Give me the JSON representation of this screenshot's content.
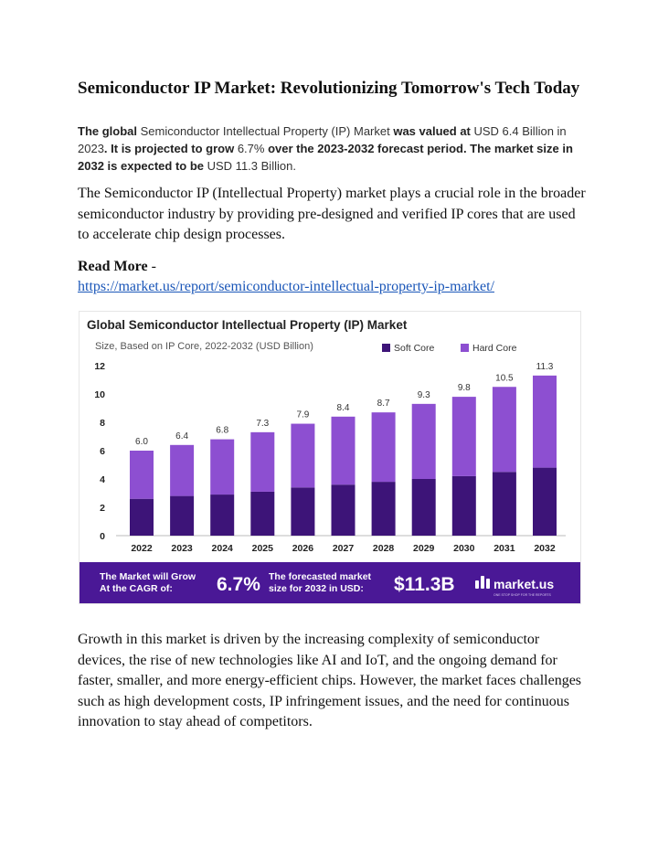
{
  "article": {
    "title": "Semiconductor IP Market: Revolutionizing Tomorrow's Tech Today",
    "summary": {
      "s1": "The global",
      "s2": " Semiconductor Intellectual Property (IP) Market ",
      "s3": "was valued at",
      "s4": " USD 6.4 Billion in 2023",
      "s5": ". It is projected to grow",
      "s6": " 6.7% ",
      "s7": "over the 2023-2032 forecast period. The market size in 2032 is expected to be",
      "s8": " USD 11.3 Billion."
    },
    "intro": "The Semiconductor IP (Intellectual Property) market plays a crucial role in the broader semiconductor industry by providing pre-designed and verified IP cores that are used to accelerate chip design processes.",
    "read_more_label": "Read More",
    "read_more_sep": " -",
    "read_more_link": "https://market.us/report/semiconductor-intellectual-property-ip-market/",
    "growth": "Growth in this market is driven by the increasing complexity of semiconductor devices, the rise of new technologies like AI and IoT, and the ongoing demand for faster, smaller, and more energy-efficient chips. However, the market faces challenges such as high development costs, IP infringement issues, and the need for continuous innovation to stay ahead of competitors."
  },
  "chart_data": {
    "type": "bar",
    "stacked": true,
    "title": "Global Semiconductor Intellectual Property (IP) Market",
    "subtitle": "Size, Based on IP Core, 2022-2032 (USD Billion)",
    "categories": [
      "2022",
      "2023",
      "2024",
      "2025",
      "2026",
      "2027",
      "2028",
      "2029",
      "2030",
      "2031",
      "2032"
    ],
    "series": [
      {
        "name": "Soft Core",
        "values": [
          2.6,
          2.8,
          2.9,
          3.1,
          3.4,
          3.6,
          3.8,
          4.0,
          4.2,
          4.5,
          4.8
        ]
      },
      {
        "name": "Hard Core",
        "values": [
          3.4,
          3.6,
          3.9,
          4.2,
          4.5,
          4.8,
          4.9,
          5.3,
          5.6,
          6.0,
          6.5
        ]
      }
    ],
    "totals": [
      "6.0",
      "6.4",
      "6.8",
      "7.3",
      "7.9",
      "8.4",
      "8.7",
      "9.3",
      "9.8",
      "10.5",
      "11.3"
    ],
    "yticks": [
      0,
      2,
      4,
      6,
      8,
      10,
      12
    ],
    "ylim": [
      0,
      12
    ],
    "legend_position": "top-right",
    "colors": {
      "soft_core": "#3d1478",
      "hard_core": "#8d4fd1",
      "banner": "#4a1896",
      "axis": "#bbbbbb"
    }
  },
  "banner": {
    "grow_label_1": "The Market will Grow",
    "grow_label_2": "At the CAGR of:",
    "cagr": "6.7%",
    "forecast_label_1": "The forecasted market",
    "forecast_label_2": "size for 2032 in USD:",
    "forecast_value": "$11.3B",
    "brand": "market.us",
    "brand_tagline": "ONE STOP SHOP FOR THE REPORTS"
  }
}
